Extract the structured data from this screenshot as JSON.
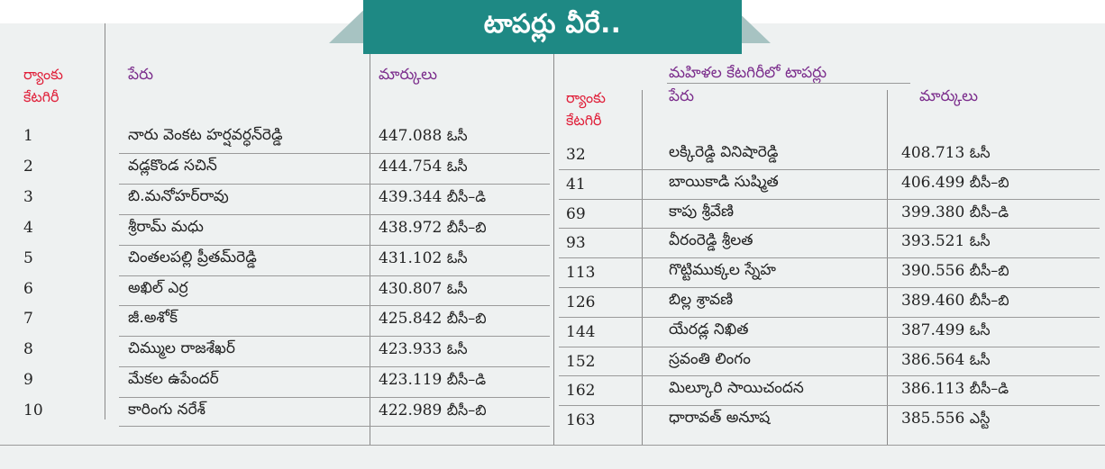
{
  "title": "టాపర్లు వీరే..",
  "left": {
    "headers": {
      "rank": [
        "ర్యాంకు",
        "కేటగిరీ"
      ],
      "name": "పేరు",
      "marks": "మార్కులు"
    },
    "rows": [
      {
        "rank": "1",
        "name": "నారు వెంకట హర్షవర్ధన్‌రెడ్డి",
        "marks": "447.088",
        "category": "ఓసీ"
      },
      {
        "rank": "2",
        "name": "వడ్లకొండ సచిన్",
        "marks": "444.754",
        "category": "ఓసీ"
      },
      {
        "rank": "3",
        "name": "బి.మనోహర్‌రావు",
        "marks": "439.344",
        "category": "బీసీ–డి"
      },
      {
        "rank": "4",
        "name": "శ్రీరామ్ మధు",
        "marks": "438.972",
        "category": "బీసీ–బి"
      },
      {
        "rank": "5",
        "name": "చింతలపల్లి ప్రీతమ్‌రెడ్డి",
        "marks": "431.102",
        "category": "ఓసీ"
      },
      {
        "rank": "6",
        "name": "అఖిల్ ఎర్ర",
        "marks": "430.807",
        "category": "ఓసీ"
      },
      {
        "rank": "7",
        "name": "జీ.అశోక్",
        "marks": "425.842",
        "category": "బీసీ–బి"
      },
      {
        "rank": "8",
        "name": "చిమ్ముల రాజశేఖర్",
        "marks": "423.933",
        "category": "ఓసీ"
      },
      {
        "rank": "9",
        "name": "మేకల ఉపేందర్",
        "marks": "423.119",
        "category": "బీసీ–డి"
      },
      {
        "rank": "10",
        "name": "కారింగు నరేశ్",
        "marks": "422.989",
        "category": "బీసీ–బి"
      }
    ]
  },
  "right": {
    "title": "మహిళల కేటగిరీలో టాపర్లు",
    "headers": {
      "rank": [
        "ర్యాంకు",
        "కేటగిరీ"
      ],
      "name": "పేరు",
      "marks": "మార్కులు"
    },
    "rows": [
      {
        "rank": "32",
        "name": "లక్కిరెడ్డి వినిషారెడ్డి",
        "marks": "408.713",
        "category": "ఓసీ"
      },
      {
        "rank": "41",
        "name": "బాయికాడి సుష్మిత",
        "marks": "406.499",
        "category": "బీసీ–బి"
      },
      {
        "rank": "69",
        "name": "కాపు శ్రీవేణి",
        "marks": "399.380",
        "category": "బీసీ–డి"
      },
      {
        "rank": "93",
        "name": "వీరంరెడ్డి శ్రీలత",
        "marks": "393.521",
        "category": "ఓసీ"
      },
      {
        "rank": "113",
        "name": "గొట్టిముక్కల స్నేహ",
        "marks": "390.556",
        "category": "బీసీ–బి"
      },
      {
        "rank": "126",
        "name": "బిల్ల శ్రావణి",
        "marks": "389.460",
        "category": "బీసీ–బి"
      },
      {
        "rank": "144",
        "name": "యేరడ్ల నిఖిత",
        "marks": "387.499",
        "category": "ఓసీ"
      },
      {
        "rank": "152",
        "name": "స్రవంతి లింగం",
        "marks": "386.564",
        "category": "ఓసీ"
      },
      {
        "rank": "162",
        "name": "మిల్కూరి సాయిచందన",
        "marks": "386.113",
        "category": "బీసీ–డి"
      },
      {
        "rank": "163",
        "name": "ధారావత్ అనూష",
        "marks": "385.556",
        "category": "ఎస్టీ"
      }
    ]
  },
  "colors": {
    "banner": "#1e8984",
    "banner_wing": "#a7c3c2",
    "panel": "#eef1f1",
    "header_red": "#e0203a",
    "header_purple": "#7b2d8c"
  }
}
